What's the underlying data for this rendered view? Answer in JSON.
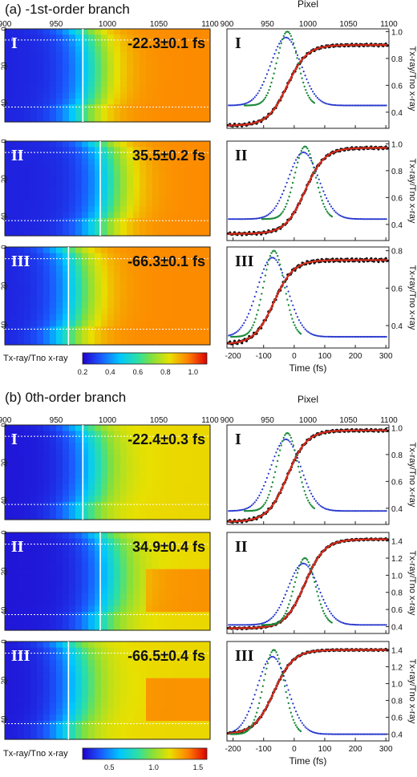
{
  "sections": [
    {
      "title": "(a) -1st-order branch",
      "colorbar_label": "Tx-ray/Tno x-ray",
      "colorbar_ticks": [
        "0.2",
        "0.4",
        "0.6",
        "0.8",
        "1.0"
      ],
      "top_axis_label": "Pixel",
      "panels": [
        {
          "roman": "I",
          "annotation": "-22.3±0.1 fs"
        },
        {
          "roman": "II",
          "annotation": "35.5±0.2 fs"
        },
        {
          "roman": "III",
          "annotation": "-66.3±0.1 fs"
        }
      ]
    },
    {
      "title": "(b) 0th-order branch",
      "colorbar_label": "Tx-ray/Tno x-ray",
      "colorbar_ticks": [
        "0.5",
        "1.0",
        "1.5"
      ],
      "top_axis_label": "Pixel",
      "panels": [
        {
          "roman": "I",
          "annotation": "-22.4±0.3 fs"
        },
        {
          "roman": "II",
          "annotation": "34.9±0.4 fs"
        },
        {
          "roman": "III",
          "annotation": "-66.5±0.4 fs"
        }
      ]
    }
  ],
  "heatmap_axes": {
    "x_ticks": [
      "900",
      "950",
      "1000",
      "1050",
      "1100"
    ],
    "y_ticks": [
      "0",
      "20",
      "40"
    ]
  },
  "line_axes": {
    "xlabel": "Time (fs)",
    "x_ticks": [
      "-200",
      "-100",
      "0",
      "100",
      "200",
      "300"
    ],
    "top_ticks": [
      "900",
      "950",
      "1000",
      "1050",
      "1100"
    ],
    "ylabel": "Tx-ray/Tno x-ray"
  },
  "chart_data": [
    {
      "type": "line",
      "section": "a",
      "panel": "I",
      "xlim": [
        -220,
        310
      ],
      "ylim": [
        0.28,
        1.02
      ],
      "y_ticks": [
        0.4,
        0.6,
        0.8,
        1.0
      ],
      "transition_center": -22.3,
      "y_low": 0.3,
      "y_high": 0.9,
      "gauss_peak": 1.0,
      "gauss_base": 0.45,
      "series": [
        {
          "name": "",
          "color": "#111111"
        },
        {
          "name": "",
          "color": "#d92a1a"
        },
        {
          "name": "",
          "color": "#1b8a3a"
        },
        {
          "name": "",
          "color": "#2233cc"
        }
      ]
    },
    {
      "type": "line",
      "section": "a",
      "panel": "II",
      "xlim": [
        -220,
        310
      ],
      "ylim": [
        0.28,
        1.02
      ],
      "y_ticks": [
        0.4,
        0.6,
        0.8,
        1.0
      ],
      "transition_center": 35.5,
      "y_low": 0.33,
      "y_high": 0.97,
      "gauss_peak": 0.98,
      "gauss_base": 0.44,
      "series": [
        {
          "name": "",
          "color": "#111111"
        },
        {
          "name": "",
          "color": "#d92a1a"
        },
        {
          "name": "",
          "color": "#1b8a3a"
        },
        {
          "name": "",
          "color": "#2233cc"
        }
      ]
    },
    {
      "type": "line",
      "section": "a",
      "panel": "III",
      "xlim": [
        -220,
        310
      ],
      "ylim": [
        0.28,
        0.82
      ],
      "y_ticks": [
        0.4,
        0.6,
        0.8
      ],
      "transition_center": -66.3,
      "y_low": 0.3,
      "y_high": 0.75,
      "gauss_peak": 0.8,
      "gauss_base": 0.34,
      "series": [
        {
          "name": "",
          "color": "#111111"
        },
        {
          "name": "",
          "color": "#d92a1a"
        },
        {
          "name": "",
          "color": "#1b8a3a"
        },
        {
          "name": "",
          "color": "#2233cc"
        }
      ]
    },
    {
      "type": "line",
      "section": "b",
      "panel": "I",
      "xlim": [
        -220,
        310
      ],
      "ylim": [
        0.28,
        1.02
      ],
      "y_ticks": [
        0.4,
        0.6,
        0.8,
        1.0
      ],
      "transition_center": -22.4,
      "y_low": 0.3,
      "y_high": 0.98,
      "gauss_peak": 0.96,
      "gauss_base": 0.38,
      "series": [
        {
          "name": "",
          "color": "#111111"
        },
        {
          "name": "",
          "color": "#d92a1a"
        },
        {
          "name": "",
          "color": "#1b8a3a"
        },
        {
          "name": "",
          "color": "#2233cc"
        }
      ]
    },
    {
      "type": "line",
      "section": "b",
      "panel": "II",
      "xlim": [
        -220,
        310
      ],
      "ylim": [
        0.32,
        1.5
      ],
      "y_ticks": [
        0.4,
        0.6,
        0.8,
        1.0,
        1.2,
        1.4
      ],
      "transition_center": 34.9,
      "y_low": 0.38,
      "y_high": 1.42,
      "gauss_peak": 1.2,
      "gauss_base": 0.42,
      "series": [
        {
          "name": "",
          "color": "#111111"
        },
        {
          "name": "",
          "color": "#d92a1a"
        },
        {
          "name": "",
          "color": "#1b8a3a"
        },
        {
          "name": "",
          "color": "#2233cc"
        }
      ]
    },
    {
      "type": "line",
      "section": "b",
      "panel": "III",
      "xlim": [
        -220,
        310
      ],
      "ylim": [
        0.32,
        1.5
      ],
      "y_ticks": [
        0.4,
        0.6,
        0.8,
        1.0,
        1.2,
        1.4
      ],
      "transition_center": -66.5,
      "y_low": 0.4,
      "y_high": 1.4,
      "gauss_peak": 1.4,
      "gauss_base": 0.4,
      "series": [
        {
          "name": "",
          "color": "#111111"
        },
        {
          "name": "",
          "color": "#d92a1a"
        },
        {
          "name": "",
          "color": "#1b8a3a"
        },
        {
          "name": "",
          "color": "#2233cc"
        }
      ]
    },
    {
      "type": "heatmap",
      "section": "a",
      "panel": "I",
      "xlim": [
        900,
        1100
      ],
      "ylim": [
        0,
        50
      ],
      "colorbar_range": [
        0.2,
        1.1
      ],
      "marker_pixel": 976
    },
    {
      "type": "heatmap",
      "section": "a",
      "panel": "II",
      "xlim": [
        900,
        1100
      ],
      "ylim": [
        0,
        50
      ],
      "colorbar_range": [
        0.2,
        1.1
      ],
      "marker_pixel": 993
    },
    {
      "type": "heatmap",
      "section": "a",
      "panel": "III",
      "xlim": [
        900,
        1100
      ],
      "ylim": [
        0,
        50
      ],
      "colorbar_range": [
        0.2,
        1.1
      ],
      "marker_pixel": 962
    },
    {
      "type": "heatmap",
      "section": "b",
      "panel": "I",
      "xlim": [
        900,
        1100
      ],
      "ylim": [
        0,
        50
      ],
      "colorbar_range": [
        0.2,
        1.6
      ],
      "marker_pixel": 976
    },
    {
      "type": "heatmap",
      "section": "b",
      "panel": "II",
      "xlim": [
        900,
        1100
      ],
      "ylim": [
        0,
        50
      ],
      "colorbar_range": [
        0.2,
        1.6
      ],
      "marker_pixel": 993
    },
    {
      "type": "heatmap",
      "section": "b",
      "panel": "III",
      "xlim": [
        900,
        1100
      ],
      "ylim": [
        0,
        50
      ],
      "colorbar_range": [
        0.2,
        1.6
      ],
      "marker_pixel": 962
    }
  ]
}
